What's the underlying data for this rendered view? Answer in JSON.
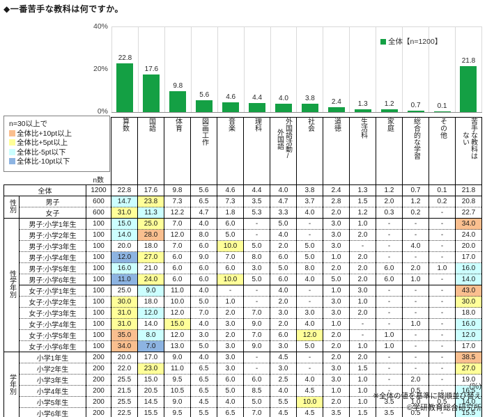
{
  "title": "◆一番苦手な教科は何ですか。",
  "chart_data": {
    "type": "bar",
    "title": "◆一番苦手な教科は何ですか。",
    "series_name": "全体【n=1200】",
    "categories": [
      "算数",
      "国語",
      "体育",
      "図画工作",
      "音楽",
      "理科",
      "外国語活動/外国語",
      "社会",
      "道徳",
      "生活科",
      "家庭",
      "総合的な学習",
      "その他",
      "苦手な教科はない"
    ],
    "values": [
      22.8,
      17.6,
      9.8,
      5.6,
      4.6,
      4.4,
      4.0,
      3.8,
      2.4,
      1.3,
      1.2,
      0.7,
      0.1,
      21.8
    ],
    "ylim": [
      0,
      40
    ],
    "yticks": [
      "40%",
      "20%",
      "0%"
    ],
    "bar_color": "#14A044",
    "legend_position": "inside-top-right",
    "grid": "vertical-category-separators"
  },
  "threshold_legend": {
    "header": "n=30以上で",
    "items": [
      {
        "label": "全体比+10pt以上",
        "color": "#FABF8F"
      },
      {
        "label": "全体比+5pt以上",
        "color": "#FFFF99"
      },
      {
        "label": "全体比-5pt以下",
        "color": "#CCFFFF"
      },
      {
        "label": "全体比-10pt以下",
        "color": "#8DB4E2"
      }
    ]
  },
  "table": {
    "n_col_header": "n数",
    "column_headers": [
      "算数",
      "国語",
      "体育",
      "図画工作",
      "音楽",
      "理科",
      "外国語活動/\n外国語",
      "社会",
      "道徳",
      "生活科",
      "家庭",
      "総合的な学習",
      "その他",
      "苦手な教科は\nない"
    ],
    "highlight_colors": {
      "o": "#FABF8F",
      "y": "#FFFF99",
      "c": "#CCFFFF",
      "b": "#8DB4E2"
    },
    "groups": [
      {
        "name": "",
        "rows": [
          {
            "label": "全体",
            "n": "1200",
            "values": [
              "22.8",
              "17.6",
              "9.8",
              "5.6",
              "4.6",
              "4.4",
              "4.0",
              "3.8",
              "2.4",
              "1.3",
              "1.2",
              "0.7",
              "0.1",
              "21.8"
            ],
            "hl": [
              "",
              "",
              "",
              "",
              "",
              "",
              "",
              "",
              "",
              "",
              "",
              "",
              "",
              ""
            ],
            "sep": "solid"
          }
        ]
      },
      {
        "name": "性別",
        "rows": [
          {
            "label": "男子",
            "n": "600",
            "values": [
              "14.7",
              "23.8",
              "7.3",
              "6.5",
              "7.3",
              "3.5",
              "4.7",
              "3.7",
              "2.8",
              "1.5",
              "2.0",
              "1.2",
              "0.2",
              "20.8"
            ],
            "hl": [
              "c",
              "y",
              "",
              "",
              "",
              "",
              "",
              "",
              "",
              "",
              "",
              "",
              "",
              ""
            ],
            "sep": "dotted"
          },
          {
            "label": "女子",
            "n": "600",
            "values": [
              "31.0",
              "11.3",
              "12.2",
              "4.7",
              "1.8",
              "5.3",
              "3.3",
              "4.0",
              "2.0",
              "1.2",
              "0.3",
              "0.2",
              "-",
              "22.7"
            ],
            "hl": [
              "y",
              "c",
              "",
              "",
              "",
              "",
              "",
              "",
              "",
              "",
              "",
              "",
              "",
              ""
            ],
            "sep": "solid"
          }
        ]
      },
      {
        "name": "性学年別",
        "rows": [
          {
            "label": "男子:小学1年生",
            "n": "100",
            "values": [
              "15.0",
              "25.0",
              "7.0",
              "4.0",
              "6.0",
              "-",
              "5.0",
              "-",
              "3.0",
              "1.0",
              "-",
              "-",
              "-",
              "34.0"
            ],
            "hl": [
              "c",
              "y",
              "",
              "",
              "",
              "",
              "",
              "",
              "",
              "",
              "",
              "",
              "",
              "o"
            ],
            "sep": "dotted"
          },
          {
            "label": "男子:小学2年生",
            "n": "100",
            "values": [
              "14.0",
              "28.0",
              "12.0",
              "8.0",
              "5.0",
              "-",
              "4.0",
              "-",
              "3.0",
              "2.0",
              "-",
              "-",
              "-",
              "24.0"
            ],
            "hl": [
              "c",
              "o",
              "",
              "",
              "",
              "",
              "",
              "",
              "",
              "",
              "",
              "",
              "",
              ""
            ],
            "sep": "dotted"
          },
          {
            "label": "男子:小学3年生",
            "n": "100",
            "values": [
              "20.0",
              "18.0",
              "7.0",
              "6.0",
              "10.0",
              "5.0",
              "2.0",
              "5.0",
              "3.0",
              "-",
              "-",
              "4.0",
              "-",
              "20.0"
            ],
            "hl": [
              "",
              "",
              "",
              "",
              "y",
              "",
              "",
              "",
              "",
              "",
              "",
              "",
              "",
              ""
            ],
            "sep": "dotted"
          },
          {
            "label": "男子:小学4年生",
            "n": "100",
            "values": [
              "12.0",
              "27.0",
              "6.0",
              "9.0",
              "7.0",
              "8.0",
              "6.0",
              "5.0",
              "1.0",
              "2.0",
              "-",
              "-",
              "-",
              "17.0"
            ],
            "hl": [
              "b",
              "y",
              "",
              "",
              "",
              "",
              "",
              "",
              "",
              "",
              "",
              "",
              "",
              ""
            ],
            "sep": "dotted"
          },
          {
            "label": "男子:小学5年生",
            "n": "100",
            "values": [
              "16.0",
              "21.0",
              "6.0",
              "6.0",
              "6.0",
              "3.0",
              "5.0",
              "8.0",
              "2.0",
              "2.0",
              "6.0",
              "2.0",
              "1.0",
              "16.0"
            ],
            "hl": [
              "c",
              "",
              "",
              "",
              "",
              "",
              "",
              "",
              "",
              "",
              "",
              "",
              "",
              "c"
            ],
            "sep": "dotted"
          },
          {
            "label": "男子:小学6年生",
            "n": "100",
            "values": [
              "11.0",
              "24.0",
              "6.0",
              "6.0",
              "10.0",
              "5.0",
              "6.0",
              "4.0",
              "5.0",
              "2.0",
              "6.0",
              "1.0",
              "-",
              "14.0"
            ],
            "hl": [
              "b",
              "y",
              "",
              "",
              "y",
              "",
              "",
              "",
              "",
              "",
              "",
              "",
              "",
              "c"
            ],
            "sep": "solid"
          },
          {
            "label": "女子:小学1年生",
            "n": "100",
            "values": [
              "25.0",
              "9.0",
              "11.0",
              "4.0",
              "-",
              "-",
              "4.0",
              "-",
              "1.0",
              "3.0",
              "-",
              "-",
              "-",
              "43.0"
            ],
            "hl": [
              "",
              "c",
              "",
              "",
              "",
              "",
              "",
              "",
              "",
              "",
              "",
              "",
              "",
              "o"
            ],
            "sep": "dotted"
          },
          {
            "label": "女子:小学2年生",
            "n": "100",
            "values": [
              "30.0",
              "18.0",
              "10.0",
              "5.0",
              "1.0",
              "-",
              "2.0",
              "-",
              "3.0",
              "1.0",
              "-",
              "-",
              "-",
              "30.0"
            ],
            "hl": [
              "y",
              "",
              "",
              "",
              "",
              "",
              "",
              "",
              "",
              "",
              "",
              "",
              "",
              "y"
            ],
            "sep": "dotted"
          },
          {
            "label": "女子:小学3年生",
            "n": "100",
            "values": [
              "31.0",
              "12.0",
              "12.0",
              "7.0",
              "2.0",
              "7.0",
              "3.0",
              "3.0",
              "3.0",
              "2.0",
              "-",
              "-",
              "-",
              "18.0"
            ],
            "hl": [
              "y",
              "c",
              "",
              "",
              "",
              "",
              "",
              "",
              "",
              "",
              "",
              "",
              "",
              ""
            ],
            "sep": "dotted"
          },
          {
            "label": "女子:小学4年生",
            "n": "100",
            "values": [
              "31.0",
              "14.0",
              "15.0",
              "4.0",
              "3.0",
              "9.0",
              "2.0",
              "4.0",
              "1.0",
              "-",
              "-",
              "1.0",
              "-",
              "16.0"
            ],
            "hl": [
              "y",
              "",
              "y",
              "",
              "",
              "",
              "",
              "",
              "",
              "",
              "",
              "",
              "",
              "c"
            ],
            "sep": "dotted"
          },
          {
            "label": "女子:小学5年生",
            "n": "100",
            "values": [
              "35.0",
              "8.0",
              "12.0",
              "3.0",
              "2.0",
              "7.0",
              "6.0",
              "12.0",
              "2.0",
              "-",
              "1.0",
              "-",
              "-",
              "12.0"
            ],
            "hl": [
              "o",
              "c",
              "",
              "",
              "",
              "",
              "",
              "y",
              "",
              "",
              "",
              "",
              "",
              "c"
            ],
            "sep": "dotted"
          },
          {
            "label": "女子:小学6年生",
            "n": "100",
            "values": [
              "34.0",
              "7.0",
              "13.0",
              "5.0",
              "3.0",
              "9.0",
              "3.0",
              "5.0",
              "2.0",
              "1.0",
              "1.0",
              "-",
              "-",
              "17.0"
            ],
            "hl": [
              "o",
              "b",
              "",
              "",
              "",
              "",
              "",
              "",
              "",
              "",
              "",
              "",
              "",
              ""
            ],
            "sep": "solid"
          }
        ]
      },
      {
        "name": "学年別",
        "rows": [
          {
            "label": "小学1年生",
            "n": "200",
            "values": [
              "20.0",
              "17.0",
              "9.0",
              "4.0",
              "3.0",
              "-",
              "4.5",
              "-",
              "2.0",
              "2.0",
              "-",
              "-",
              "-",
              "38.5"
            ],
            "hl": [
              "",
              "",
              "",
              "",
              "",
              "",
              "",
              "",
              "",
              "",
              "",
              "",
              "",
              "o"
            ],
            "sep": "dotted"
          },
          {
            "label": "小学2年生",
            "n": "200",
            "values": [
              "22.0",
              "23.0",
              "11.0",
              "6.5",
              "3.0",
              "-",
              "3.0",
              "-",
              "3.0",
              "1.5",
              "-",
              "-",
              "-",
              "27.0"
            ],
            "hl": [
              "",
              "y",
              "",
              "",
              "",
              "",
              "",
              "",
              "",
              "",
              "",
              "",
              "",
              "y"
            ],
            "sep": "dotted"
          },
          {
            "label": "小学3年生",
            "n": "200",
            "values": [
              "25.5",
              "15.0",
              "9.5",
              "6.5",
              "6.0",
              "6.0",
              "2.5",
              "4.0",
              "3.0",
              "1.0",
              "-",
              "2.0",
              "-",
              "19.0"
            ],
            "hl": [
              "",
              "",
              "",
              "",
              "",
              "",
              "",
              "",
              "",
              "",
              "",
              "",
              "",
              ""
            ],
            "sep": "dotted"
          },
          {
            "label": "小学4年生",
            "n": "200",
            "values": [
              "21.5",
              "20.5",
              "10.5",
              "6.5",
              "5.0",
              "8.5",
              "4.0",
              "4.5",
              "1.0",
              "1.0",
              "-",
              "0.5",
              "-",
              "16.5"
            ],
            "hl": [
              "",
              "",
              "",
              "",
              "",
              "",
              "",
              "",
              "",
              "",
              "",
              "",
              "",
              "c"
            ],
            "sep": "dotted"
          },
          {
            "label": "小学5年生",
            "n": "200",
            "values": [
              "25.5",
              "14.5",
              "9.0",
              "4.5",
              "4.0",
              "5.0",
              "5.5",
              "10.0",
              "2.0",
              "1.0",
              "3.5",
              "1.0",
              "0.5",
              "14.0"
            ],
            "hl": [
              "",
              "",
              "",
              "",
              "",
              "",
              "",
              "y",
              "",
              "",
              "",
              "",
              "",
              "c"
            ],
            "sep": "dotted"
          },
          {
            "label": "小学6年生",
            "n": "200",
            "values": [
              "22.5",
              "15.5",
              "9.5",
              "5.5",
              "6.5",
              "7.0",
              "4.5",
              "4.5",
              "3.5",
              "1.5",
              "3.5",
              "0.5",
              "-",
              "15.5"
            ],
            "hl": [
              "",
              "",
              "",
              "",
              "",
              "",
              "",
              "",
              "",
              "",
              "",
              "",
              "",
              "c"
            ],
            "sep": "solid"
          }
        ]
      }
    ]
  },
  "footnotes": {
    "unit": "(％)",
    "sort_note": "※全体の値を基準に降順並び替え",
    "copyright": "©学研教育総合研究所"
  }
}
